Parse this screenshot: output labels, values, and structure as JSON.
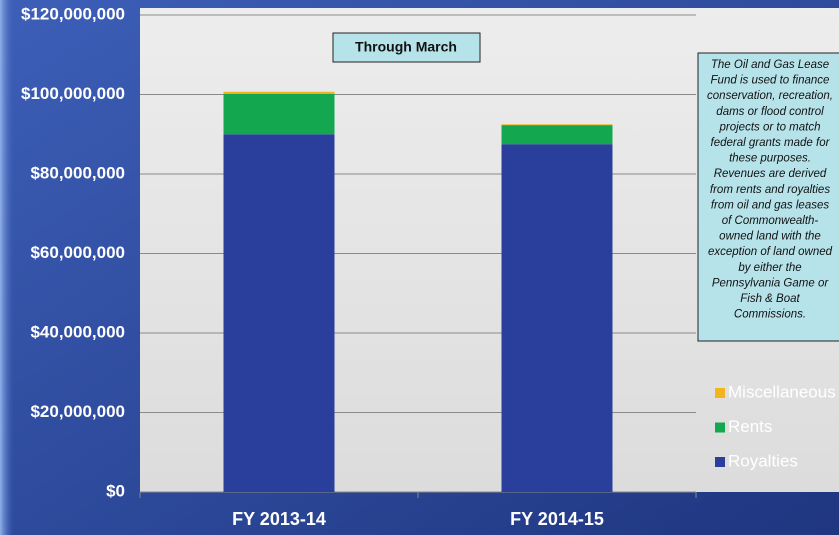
{
  "chart_data": {
    "type": "stacked-bar",
    "subtitle": "Through March",
    "annotation": [
      "The Oil and Gas Lease",
      "Fund is used to finance",
      "conservation, recreation,",
      "dams or flood control",
      "projects or to match",
      "federal grants made for",
      "these purposes.",
      "Revenues are derived",
      "from rents and royalties",
      "from oil and gas leases",
      "of Commonwealth-",
      "owned land with the",
      "exception of land owned",
      "by either the",
      "Pennsylvania Game or",
      "Fish & Boat",
      "Commissions."
    ],
    "categories": [
      "FY 2013-14",
      "FY 2014-15"
    ],
    "series": [
      {
        "name": "Royalties",
        "color": "#2a3f9c",
        "values": [
          90000000,
          87500000
        ]
      },
      {
        "name": "Rents",
        "color": "#13a84f",
        "values": [
          10200000,
          4800000
        ]
      },
      {
        "name": "Miscellaneous",
        "color": "#f3b51b",
        "values": [
          500000,
          200000
        ]
      }
    ],
    "ylim": [
      0,
      120000000
    ],
    "yticks": [
      {
        "value": 0,
        "label": "$0"
      },
      {
        "value": 20000000,
        "label": "$20,000,000"
      },
      {
        "value": 40000000,
        "label": "$40,000,000"
      },
      {
        "value": 60000000,
        "label": "$60,000,000"
      },
      {
        "value": 80000000,
        "label": "$80,000,000"
      },
      {
        "value": 100000000,
        "label": "$100,000,000"
      },
      {
        "value": 120000000,
        "label": "$120,000,000"
      }
    ],
    "grid": true
  }
}
